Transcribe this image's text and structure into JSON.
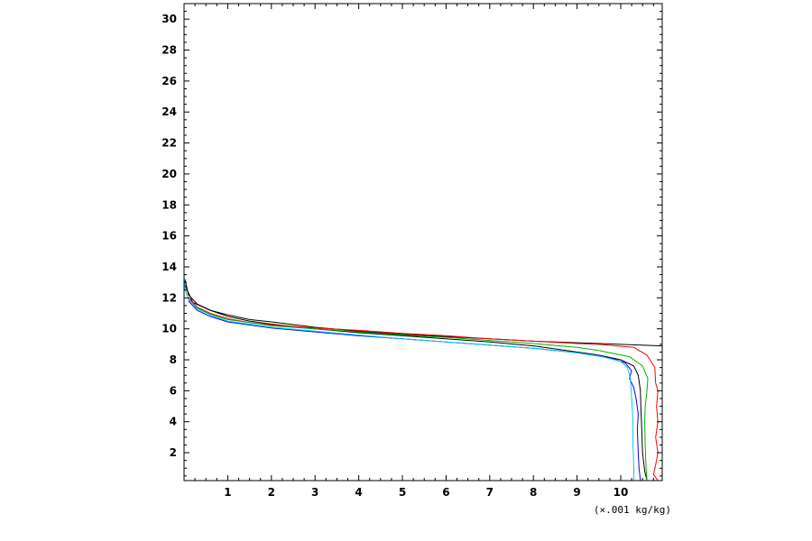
{
  "chart_data": {
    "type": "line",
    "title": "",
    "xlabel": "(×.001 kg/kg)",
    "ylabel": "",
    "xlim": [
      0,
      10.95
    ],
    "ylim": [
      0.2,
      31
    ],
    "x_ticks": [
      1,
      2,
      3,
      4,
      5,
      6,
      7,
      8,
      9,
      10
    ],
    "y_ticks": [
      2,
      4,
      6,
      8,
      10,
      12,
      14,
      16,
      18,
      20,
      22,
      24,
      26,
      28,
      30
    ],
    "grid": false,
    "legend": "none",
    "series": [
      {
        "color": "#000000",
        "points": [
          [
            10.6,
            0.2
          ],
          [
            10.55,
            0.8
          ],
          [
            10.5,
            2
          ],
          [
            10.48,
            3.5
          ],
          [
            10.46,
            5
          ],
          [
            10.45,
            6
          ],
          [
            10.4,
            7
          ],
          [
            10.3,
            7.6
          ],
          [
            10.0,
            8.0
          ],
          [
            9.5,
            8.3
          ],
          [
            9.0,
            8.5
          ],
          [
            8.0,
            8.9
          ],
          [
            7.0,
            9.15
          ],
          [
            6.0,
            9.35
          ],
          [
            5.0,
            9.55
          ],
          [
            4.0,
            9.75
          ],
          [
            3.0,
            10.0
          ],
          [
            2.0,
            10.3
          ],
          [
            1.5,
            10.5
          ],
          [
            1.0,
            10.8
          ],
          [
            0.6,
            11.2
          ],
          [
            0.3,
            11.6
          ],
          [
            0.1,
            12.2
          ],
          [
            0.02,
            13.2
          ]
        ]
      },
      {
        "color": "#000000",
        "points": [
          [
            0.01,
            12.9
          ],
          [
            0.2,
            11.7
          ],
          [
            0.6,
            11.2
          ],
          [
            1.0,
            10.9
          ],
          [
            1.5,
            10.6
          ],
          [
            2.0,
            10.45
          ],
          [
            3.0,
            10.1
          ],
          [
            4.0,
            9.85
          ],
          [
            5.0,
            9.65
          ],
          [
            6.0,
            9.5
          ],
          [
            7.0,
            9.35
          ],
          [
            8.0,
            9.2
          ],
          [
            9.0,
            9.1
          ],
          [
            10.0,
            9.0
          ],
          [
            10.95,
            8.9
          ]
        ]
      },
      {
        "color": "#ff0000",
        "points": [
          [
            10.85,
            0.2
          ],
          [
            10.75,
            0.6
          ],
          [
            10.8,
            1.2
          ],
          [
            10.85,
            2
          ],
          [
            10.8,
            3
          ],
          [
            10.85,
            4
          ],
          [
            10.82,
            5
          ],
          [
            10.85,
            6
          ],
          [
            10.8,
            6.5
          ],
          [
            10.78,
            7.5
          ],
          [
            10.6,
            8.3
          ],
          [
            10.3,
            8.8
          ],
          [
            9.5,
            9.0
          ],
          [
            9.0,
            9.05
          ],
          [
            8.0,
            9.2
          ],
          [
            7.0,
            9.35
          ],
          [
            6.0,
            9.55
          ],
          [
            5.0,
            9.7
          ],
          [
            4.0,
            9.9
          ],
          [
            3.0,
            10.05
          ],
          [
            2.0,
            10.25
          ],
          [
            1.5,
            10.4
          ],
          [
            1.0,
            10.65
          ],
          [
            0.6,
            11.0
          ],
          [
            0.3,
            11.4
          ],
          [
            0.1,
            12.0
          ]
        ]
      },
      {
        "color": "#00b000",
        "points": [
          [
            10.6,
            0.2
          ],
          [
            10.58,
            1
          ],
          [
            10.56,
            2.5
          ],
          [
            10.55,
            4
          ],
          [
            10.56,
            5
          ],
          [
            10.6,
            6
          ],
          [
            10.62,
            6.8
          ],
          [
            10.5,
            7.6
          ],
          [
            10.2,
            8.2
          ],
          [
            9.5,
            8.6
          ],
          [
            9.0,
            8.8
          ],
          [
            8.0,
            9.05
          ],
          [
            7.0,
            9.25
          ],
          [
            6.0,
            9.45
          ],
          [
            5.0,
            9.6
          ],
          [
            4.0,
            9.8
          ],
          [
            3.0,
            10.0
          ],
          [
            2.0,
            10.2
          ],
          [
            1.5,
            10.4
          ],
          [
            1.0,
            10.6
          ],
          [
            0.6,
            10.95
          ],
          [
            0.3,
            11.35
          ],
          [
            0.1,
            11.9
          ]
        ]
      },
      {
        "color": "#0000ff",
        "points": [
          [
            10.45,
            0.2
          ],
          [
            10.42,
            1
          ],
          [
            10.4,
            2
          ],
          [
            10.38,
            3.5
          ],
          [
            10.4,
            4.5
          ],
          [
            10.35,
            5.5
          ],
          [
            10.3,
            6.2
          ],
          [
            10.2,
            6.8
          ],
          [
            10.25,
            7.3
          ],
          [
            10.1,
            7.8
          ],
          [
            9.8,
            8.1
          ],
          [
            9.0,
            8.45
          ],
          [
            8.0,
            8.75
          ],
          [
            7.0,
            8.95
          ],
          [
            6.0,
            9.15
          ],
          [
            5.0,
            9.35
          ],
          [
            4.0,
            9.55
          ],
          [
            3.0,
            9.8
          ],
          [
            2.0,
            10.05
          ],
          [
            1.5,
            10.25
          ],
          [
            1.0,
            10.45
          ],
          [
            0.6,
            10.8
          ],
          [
            0.3,
            11.2
          ],
          [
            0.1,
            11.8
          ]
        ]
      },
      {
        "color": "#00c8ff",
        "points": [
          [
            10.3,
            0.2
          ],
          [
            10.3,
            1
          ],
          [
            10.28,
            2.5
          ],
          [
            10.28,
            4
          ],
          [
            10.25,
            5.5
          ],
          [
            10.22,
            6.8
          ],
          [
            10.15,
            7.5
          ],
          [
            10.0,
            7.9
          ],
          [
            9.5,
            8.25
          ],
          [
            9.0,
            8.45
          ],
          [
            8.0,
            8.75
          ],
          [
            7.0,
            8.95
          ],
          [
            6.0,
            9.15
          ],
          [
            5.0,
            9.35
          ],
          [
            4.0,
            9.6
          ],
          [
            3.0,
            9.85
          ],
          [
            2.0,
            10.1
          ],
          [
            1.5,
            10.3
          ],
          [
            1.0,
            10.5
          ],
          [
            0.6,
            10.9
          ],
          [
            0.3,
            11.3
          ],
          [
            0.1,
            11.9
          ],
          [
            0.02,
            12.6
          ],
          [
            0.0,
            13.5
          ],
          [
            0.0,
            31
          ]
        ]
      }
    ]
  }
}
